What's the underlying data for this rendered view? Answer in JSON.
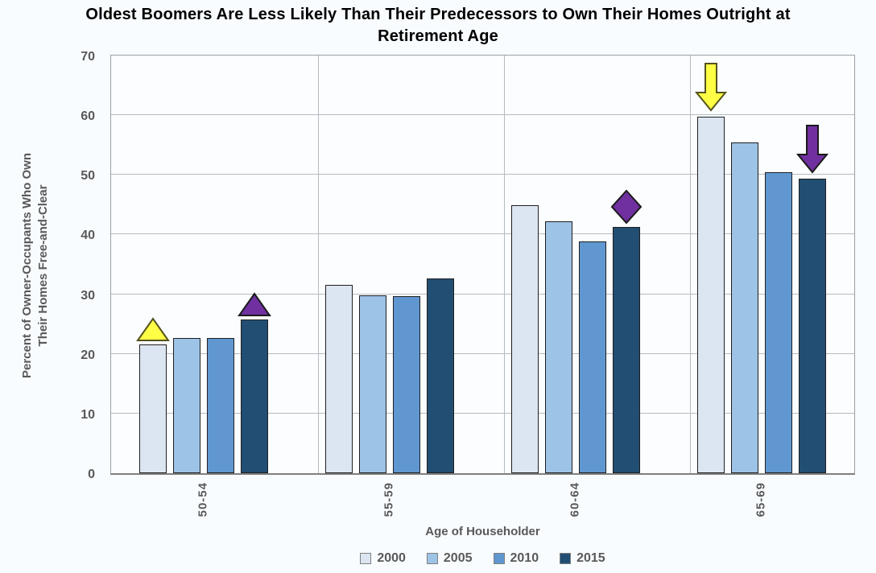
{
  "title": "Oldest Boomers Are Less Likely Than Their Predecessors to Own Their Homes Outright at Retirement Age",
  "title_lines": [
    "Oldest Boomers Are Less Likely Than Their Predecessors to Own Their Homes Outright at",
    "Retirement Age"
  ],
  "chart_data": {
    "type": "bar",
    "title": "Oldest Boomers Are Less Likely Than Their Predecessors to Own Their Homes Outright at Retirement Age",
    "categories": [
      "50-54",
      "55-59",
      "60-64",
      "65-69"
    ],
    "series": [
      {
        "name": "2000",
        "color": "#DCE6F2",
        "values": [
          21.6,
          31.5,
          44.9,
          59.8
        ]
      },
      {
        "name": "2005",
        "color": "#9DC3E6",
        "values": [
          22.6,
          29.8,
          42.2,
          55.4
        ]
      },
      {
        "name": "2010",
        "color": "#6097D1",
        "values": [
          22.6,
          29.7,
          38.9,
          50.4
        ]
      },
      {
        "name": "2015",
        "color": "#224E73",
        "values": [
          25.8,
          32.7,
          41.3,
          49.4
        ]
      }
    ],
    "xlabel": "Age of Householder",
    "ylabel": "Percent of Owner-Occupants Who Own Their Homes Free-and-Clear",
    "ylabel_lines": [
      "Percent of Owner-Occupants Who Own",
      "Their Homes Free-and-Clear"
    ],
    "ylim": [
      0,
      70
    ],
    "ytick_step": 10,
    "grid": true,
    "legend_position": "bottom",
    "legend_labels": [
      "2000",
      "2005",
      "2010",
      "2015"
    ],
    "annotations": [
      {
        "shape": "triangle-up",
        "color": "#FFFF45",
        "stroke": "#55531E",
        "category": 0,
        "series": 0
      },
      {
        "shape": "triangle-up",
        "color": "#7030A0",
        "stroke": "#1A1A1A",
        "category": 0,
        "series": 3
      },
      {
        "shape": "diamond",
        "color": "#7030A0",
        "stroke": "#1A1A1A",
        "category": 2,
        "series": 3
      },
      {
        "shape": "arrow-down",
        "color": "#FFFF45",
        "stroke": "#55531E",
        "category": 3,
        "series": 0
      },
      {
        "shape": "arrow-down",
        "color": "#7030A0",
        "stroke": "#1A1A1A",
        "category": 3,
        "series": 3
      }
    ]
  }
}
